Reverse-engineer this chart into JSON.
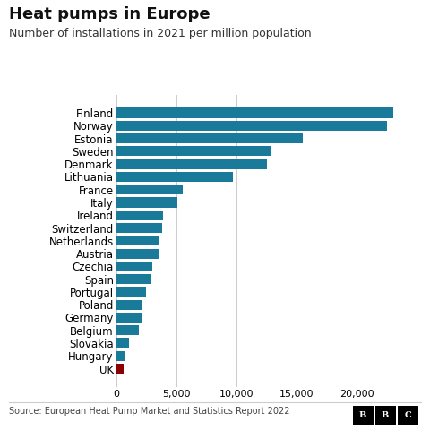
{
  "title": "Heat pumps in Europe",
  "subtitle": "Number of installations in 2021 per million population",
  "source": "Source: European Heat Pump Market and Statistics Report 2022",
  "countries": [
    "Finland",
    "Norway",
    "Estonia",
    "Sweden",
    "Denmark",
    "Lithuania",
    "France",
    "Italy",
    "Ireland",
    "Switzerland",
    "Netherlands",
    "Austria",
    "Czechia",
    "Spain",
    "Portugal",
    "Poland",
    "Germany",
    "Belgium",
    "Slovakia",
    "Hungary",
    "UK"
  ],
  "values": [
    23000,
    22500,
    15500,
    12800,
    12500,
    9700,
    5500,
    5100,
    3900,
    3800,
    3600,
    3500,
    3000,
    2950,
    2500,
    2200,
    2100,
    1900,
    1100,
    700,
    600
  ],
  "bar_color_default": "#1a7a9a",
  "bar_color_uk": "#8b0000",
  "background_color": "#ffffff",
  "title_fontsize": 13,
  "subtitle_fontsize": 9,
  "tick_fontsize": 8,
  "label_fontsize": 8.5,
  "source_fontsize": 7,
  "xlim": [
    0,
    25000
  ],
  "xticks": [
    0,
    5000,
    10000,
    15000,
    20000
  ],
  "xtick_labels": [
    "0",
    "5,000",
    "10,000",
    "15,000",
    "20,000"
  ]
}
